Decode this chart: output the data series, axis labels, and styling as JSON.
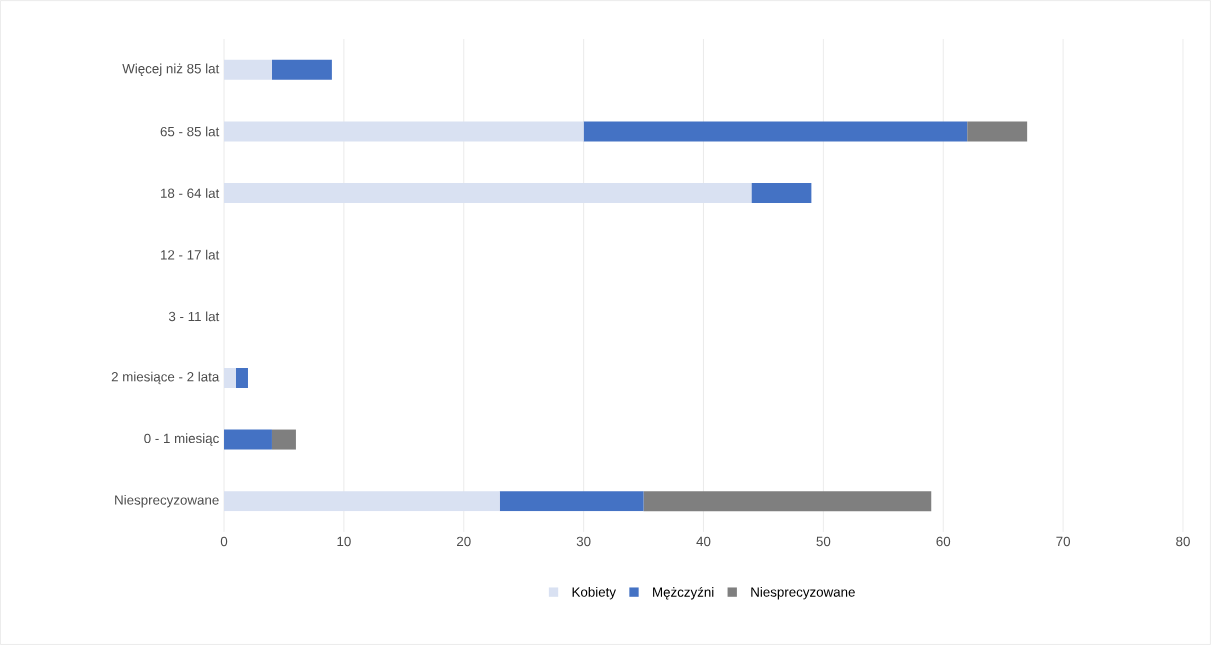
{
  "chart_data": {
    "type": "bar",
    "orientation": "horizontal",
    "stacked": true,
    "categories": [
      "Więcej niż 85 lat",
      "65 - 85 lat",
      "18 - 64 lat",
      "12 - 17 lat",
      "3 - 11 lat",
      "2 miesiące - 2 lata",
      "0 - 1 miesiąc",
      "Niesprecyzowane"
    ],
    "series": [
      {
        "name": "Kobiety",
        "color": "#d9e1f2",
        "values": [
          4,
          30,
          44,
          0,
          0,
          1,
          0,
          23
        ]
      },
      {
        "name": "Mężczyźni",
        "color": "#4472c4",
        "values": [
          5,
          32,
          5,
          0,
          0,
          1,
          4,
          12
        ]
      },
      {
        "name": "Niesprecyzowane",
        "color": "#7f7f7f",
        "values": [
          0,
          5,
          0,
          0,
          0,
          0,
          2,
          24
        ]
      }
    ],
    "xlim": [
      0,
      80
    ],
    "xticks": [
      0,
      10,
      20,
      30,
      40,
      50,
      60,
      70,
      80
    ],
    "grid": "x",
    "legend": "bottom"
  }
}
